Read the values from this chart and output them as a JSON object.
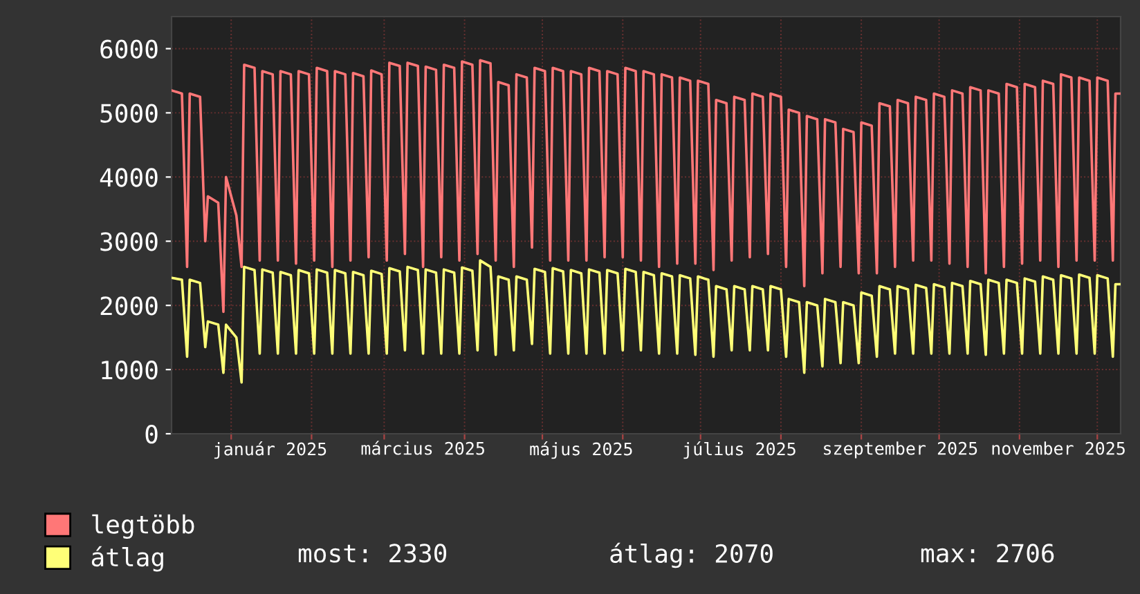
{
  "chart_data": {
    "type": "line",
    "x": [
      "2024-12-09",
      "2024-12-13",
      "2024-12-15",
      "2024-12-16",
      "2024-12-20",
      "2024-12-22",
      "2024-12-23",
      "2024-12-27",
      "2024-12-29",
      "2024-12-30",
      "2025-01-03",
      "2025-01-05",
      "2025-01-06",
      "2025-01-10",
      "2025-01-12",
      "2025-01-13",
      "2025-01-17",
      "2025-01-19",
      "2025-01-20",
      "2025-01-24",
      "2025-01-26",
      "2025-01-27",
      "2025-01-31",
      "2025-02-02",
      "2025-02-03",
      "2025-02-07",
      "2025-02-09",
      "2025-02-10",
      "2025-02-14",
      "2025-02-16",
      "2025-02-17",
      "2025-02-21",
      "2025-02-23",
      "2025-02-24",
      "2025-02-28",
      "2025-03-02",
      "2025-03-03",
      "2025-03-07",
      "2025-03-09",
      "2025-03-10",
      "2025-03-14",
      "2025-03-16",
      "2025-03-17",
      "2025-03-21",
      "2025-03-23",
      "2025-03-24",
      "2025-03-28",
      "2025-03-30",
      "2025-03-31",
      "2025-04-04",
      "2025-04-06",
      "2025-04-07",
      "2025-04-11",
      "2025-04-13",
      "2025-04-14",
      "2025-04-18",
      "2025-04-20",
      "2025-04-21",
      "2025-04-25",
      "2025-04-27",
      "2025-04-28",
      "2025-05-02",
      "2025-05-04",
      "2025-05-05",
      "2025-05-09",
      "2025-05-11",
      "2025-05-12",
      "2025-05-16",
      "2025-05-18",
      "2025-05-19",
      "2025-05-23",
      "2025-05-25",
      "2025-05-26",
      "2025-05-30",
      "2025-06-01",
      "2025-06-02",
      "2025-06-06",
      "2025-06-08",
      "2025-06-09",
      "2025-06-13",
      "2025-06-15",
      "2025-06-16",
      "2025-06-20",
      "2025-06-22",
      "2025-06-23",
      "2025-06-27",
      "2025-06-29",
      "2025-06-30",
      "2025-07-04",
      "2025-07-06",
      "2025-07-07",
      "2025-07-11",
      "2025-07-13",
      "2025-07-14",
      "2025-07-18",
      "2025-07-20",
      "2025-07-21",
      "2025-07-25",
      "2025-07-27",
      "2025-07-28",
      "2025-08-01",
      "2025-08-03",
      "2025-08-04",
      "2025-08-08",
      "2025-08-10",
      "2025-08-11",
      "2025-08-15",
      "2025-08-17",
      "2025-08-18",
      "2025-08-22",
      "2025-08-24",
      "2025-08-25",
      "2025-08-29",
      "2025-08-31",
      "2025-09-01",
      "2025-09-05",
      "2025-09-07",
      "2025-09-08",
      "2025-09-12",
      "2025-09-14",
      "2025-09-15",
      "2025-09-19",
      "2025-09-21",
      "2025-09-22",
      "2025-09-26",
      "2025-09-28",
      "2025-09-29",
      "2025-10-03",
      "2025-10-05",
      "2025-10-06",
      "2025-10-10",
      "2025-10-12",
      "2025-10-13",
      "2025-10-17",
      "2025-10-19",
      "2025-10-20",
      "2025-10-24",
      "2025-10-26",
      "2025-10-27",
      "2025-10-31",
      "2025-11-02",
      "2025-11-03",
      "2025-11-07",
      "2025-11-09",
      "2025-11-10",
      "2025-11-14",
      "2025-11-16",
      "2025-11-17",
      "2025-11-21",
      "2025-11-23",
      "2025-11-24",
      "2025-11-28",
      "2025-11-30",
      "2025-12-01",
      "2025-12-05",
      "2025-12-07",
      "2025-12-08",
      "2025-12-10"
    ],
    "series": [
      {
        "name": "legtöbb",
        "color": "#ff7777",
        "values": [
          5350,
          5300,
          2600,
          5300,
          5250,
          3000,
          3700,
          3600,
          1900,
          4000,
          3400,
          2600,
          5750,
          5700,
          2700,
          5650,
          5600,
          2700,
          5650,
          5600,
          2650,
          5650,
          5600,
          2700,
          5700,
          5650,
          2600,
          5650,
          5600,
          2700,
          5620,
          5570,
          2750,
          5660,
          5600,
          2700,
          5780,
          5730,
          2800,
          5780,
          5730,
          2600,
          5720,
          5670,
          2750,
          5750,
          5700,
          2700,
          5800,
          5750,
          2800,
          5820,
          5770,
          2700,
          5480,
          5430,
          2600,
          5600,
          5550,
          2900,
          5700,
          5650,
          2700,
          5700,
          5650,
          2700,
          5650,
          5600,
          2700,
          5700,
          5650,
          2750,
          5650,
          5600,
          2750,
          5700,
          5650,
          2700,
          5650,
          5600,
          2600,
          5600,
          5550,
          2650,
          5550,
          5500,
          2650,
          5500,
          5450,
          2550,
          5200,
          5150,
          2700,
          5250,
          5200,
          2750,
          5300,
          5250,
          2800,
          5300,
          5250,
          2600,
          5050,
          5000,
          2300,
          4950,
          4900,
          2500,
          4900,
          4850,
          2600,
          4750,
          4700,
          2500,
          4850,
          4800,
          2500,
          5150,
          5100,
          2600,
          5200,
          5150,
          2700,
          5250,
          5200,
          2700,
          5300,
          5250,
          2650,
          5350,
          5300,
          2600,
          5400,
          5350,
          2500,
          5350,
          5300,
          2600,
          5450,
          5400,
          2650,
          5450,
          5400,
          2700,
          5500,
          5450,
          2600,
          5600,
          5550,
          2700,
          5550,
          5500,
          2700,
          5550,
          5500,
          2700,
          5300,
          5300
        ]
      },
      {
        "name": "átlag",
        "color": "#ffff77",
        "values": [
          2430,
          2400,
          1200,
          2400,
          2350,
          1350,
          1750,
          1700,
          950,
          1700,
          1500,
          800,
          2600,
          2550,
          1250,
          2560,
          2510,
          1250,
          2520,
          2470,
          1250,
          2550,
          2500,
          1250,
          2560,
          2510,
          1250,
          2550,
          2500,
          1250,
          2520,
          2470,
          1250,
          2540,
          2490,
          1250,
          2580,
          2530,
          1300,
          2600,
          2550,
          1250,
          2560,
          2510,
          1250,
          2560,
          2510,
          1250,
          2590,
          2540,
          1300,
          2700,
          2600,
          1230,
          2450,
          2400,
          1300,
          2450,
          2400,
          1400,
          2570,
          2520,
          1250,
          2580,
          2530,
          1250,
          2550,
          2500,
          1250,
          2560,
          2510,
          1250,
          2550,
          2500,
          1300,
          2570,
          2520,
          1300,
          2520,
          2470,
          1250,
          2500,
          2450,
          1250,
          2470,
          2420,
          1230,
          2450,
          2400,
          1200,
          2300,
          2250,
          1300,
          2300,
          2250,
          1300,
          2300,
          2250,
          1300,
          2300,
          2250,
          1200,
          2100,
          2050,
          950,
          2050,
          2000,
          1050,
          2100,
          2050,
          1100,
          2050,
          2000,
          1100,
          2200,
          2150,
          1200,
          2300,
          2250,
          1250,
          2300,
          2250,
          1250,
          2320,
          2270,
          1250,
          2330,
          2280,
          1250,
          2350,
          2300,
          1250,
          2380,
          2330,
          1230,
          2400,
          2350,
          1250,
          2400,
          2350,
          1250,
          2420,
          2370,
          1250,
          2450,
          2400,
          1250,
          2470,
          2420,
          1250,
          2480,
          2430,
          1250,
          2470,
          2420,
          1200,
          2330,
          2330
        ]
      }
    ],
    "xlim": [
      "2024-12-09",
      "2025-12-10"
    ],
    "xticks": [
      {
        "value": "2025-01-01",
        "label": null
      },
      {
        "value": "2025-01-16",
        "label": "január 2025"
      },
      {
        "value": "2025-02-01",
        "label": null
      },
      {
        "value": "2025-03-01",
        "label": null
      },
      {
        "value": "2025-03-16",
        "label": "március 2025"
      },
      {
        "value": "2025-04-01",
        "label": null
      },
      {
        "value": "2025-05-01",
        "label": null
      },
      {
        "value": "2025-05-16",
        "label": "május 2025"
      },
      {
        "value": "2025-06-01",
        "label": null
      },
      {
        "value": "2025-07-01",
        "label": null
      },
      {
        "value": "2025-07-16",
        "label": "július 2025"
      },
      {
        "value": "2025-08-01",
        "label": null
      },
      {
        "value": "2025-09-01",
        "label": null
      },
      {
        "value": "2025-09-16",
        "label": "szeptember 2025"
      },
      {
        "value": "2025-10-01",
        "label": null
      },
      {
        "value": "2025-11-01",
        "label": null
      },
      {
        "value": "2025-11-16",
        "label": "november 2025"
      },
      {
        "value": "2025-12-01",
        "label": null
      }
    ],
    "ylim": [
      0,
      6500
    ],
    "yticks": [
      0,
      1000,
      2000,
      3000,
      4000,
      5000,
      6000
    ],
    "grid": true,
    "legend": "bottom left",
    "annotations": [
      "most: 2330",
      "átlag: 2070",
      "max: 2706"
    ]
  }
}
